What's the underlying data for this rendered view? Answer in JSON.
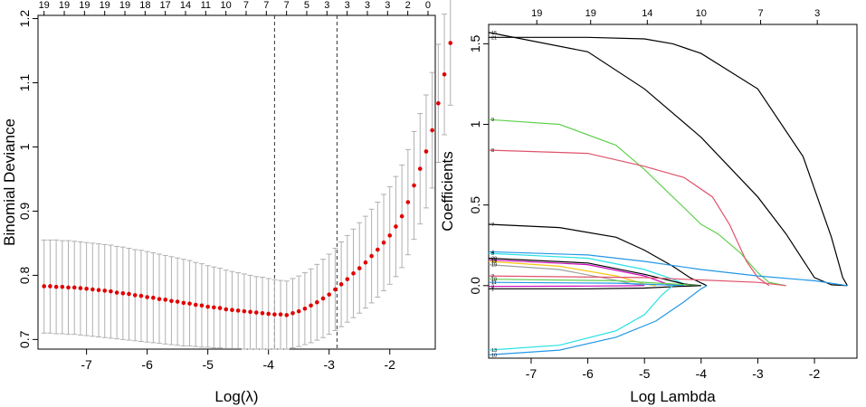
{
  "chart_data": [
    {
      "type": "scatter",
      "title": "",
      "xlabel": "Log(λ)",
      "ylabel": "Binomial Deviance",
      "xlim": [
        -7.8,
        -1.25
      ],
      "ylim": [
        0.685,
        1.205
      ],
      "xticks": [
        -7,
        -6,
        -5,
        -4,
        -3,
        -2
      ],
      "yticks": [
        0.7,
        0.8,
        0.9,
        1.0,
        1.1,
        1.2
      ],
      "top_axis_labels": [
        "19",
        "19",
        "19",
        "19",
        "19",
        "18",
        "17",
        "14",
        "11",
        "10",
        "7",
        "7",
        "7",
        "5",
        "3",
        "3",
        "3",
        "3",
        "2",
        "0"
      ],
      "vlines": [
        -3.9,
        -2.87
      ],
      "series": [
        {
          "name": "cv mean",
          "x_start": -7.7,
          "x_step": 0.1,
          "values": [
            0.783,
            0.783,
            0.782,
            0.782,
            0.781,
            0.781,
            0.78,
            0.779,
            0.778,
            0.777,
            0.776,
            0.775,
            0.773,
            0.772,
            0.771,
            0.769,
            0.768,
            0.766,
            0.765,
            0.763,
            0.762,
            0.76,
            0.759,
            0.757,
            0.756,
            0.754,
            0.753,
            0.751,
            0.75,
            0.749,
            0.747,
            0.746,
            0.745,
            0.744,
            0.743,
            0.742,
            0.741,
            0.74,
            0.739,
            0.739,
            0.738,
            0.741,
            0.744,
            0.748,
            0.753,
            0.758,
            0.764,
            0.77,
            0.778,
            0.786,
            0.794,
            0.803,
            0.811,
            0.82,
            0.83,
            0.84,
            0.851,
            0.862,
            0.876,
            0.892,
            0.914,
            0.94,
            0.966,
            0.993,
            1.026,
            1.068,
            1.113,
            1.162
          ],
          "lower": [
            0.71,
            0.71,
            0.709,
            0.709,
            0.708,
            0.708,
            0.707,
            0.706,
            0.705,
            0.704,
            0.703,
            0.702,
            0.701,
            0.7,
            0.699,
            0.698,
            0.697,
            0.696,
            0.695,
            0.694,
            0.693,
            0.692,
            0.691,
            0.69,
            0.69,
            0.689,
            0.688,
            0.688,
            0.687,
            0.687,
            0.686,
            0.686,
            0.686,
            0.685,
            0.685,
            0.685,
            0.685,
            0.685,
            0.685,
            0.685,
            0.685,
            0.687,
            0.689,
            0.692,
            0.695,
            0.699,
            0.703,
            0.708,
            0.714,
            0.72,
            0.727,
            0.734,
            0.741,
            0.749,
            0.757,
            0.766,
            0.776,
            0.786,
            0.798,
            0.812,
            0.832,
            0.856,
            0.88,
            0.905,
            0.936,
            0.976,
            1.019,
            1.065
          ],
          "upper": [
            0.855,
            0.855,
            0.855,
            0.854,
            0.854,
            0.853,
            0.852,
            0.851,
            0.85,
            0.849,
            0.848,
            0.847,
            0.845,
            0.844,
            0.842,
            0.84,
            0.839,
            0.837,
            0.835,
            0.833,
            0.831,
            0.829,
            0.827,
            0.825,
            0.823,
            0.82,
            0.818,
            0.815,
            0.813,
            0.811,
            0.808,
            0.806,
            0.804,
            0.802,
            0.8,
            0.798,
            0.797,
            0.795,
            0.793,
            0.792,
            0.791,
            0.795,
            0.799,
            0.804,
            0.81,
            0.817,
            0.825,
            0.833,
            0.842,
            0.852,
            0.862,
            0.872,
            0.882,
            0.892,
            0.903,
            0.914,
            0.926,
            0.938,
            0.954,
            0.972,
            0.996,
            1.024,
            1.052,
            1.081,
            1.116,
            1.16,
            1.207,
            1.259
          ]
        }
      ]
    },
    {
      "type": "line",
      "title": "",
      "xlabel": "Log Lambda",
      "ylabel": "Coefficients",
      "xlim": [
        -7.75,
        -1.25
      ],
      "ylim": [
        -0.45,
        1.62
      ],
      "xticks": [
        -7,
        -6,
        -5,
        -4,
        -3,
        -2
      ],
      "yticks": [
        0.0,
        0.5,
        1.0,
        1.5
      ],
      "top_axis_labels": [
        "19",
        "19",
        "14",
        "10",
        "7",
        "3"
      ],
      "top_axis_positions": [
        -6.9,
        -5.95,
        -4.95,
        -4.0,
        -2.95,
        -1.95
      ],
      "series": [
        {
          "name": "15",
          "color": "#000000",
          "x": [
            -7.75,
            -6.0,
            -5.0,
            -4.0,
            -3.0,
            -2.5,
            -2.0,
            -1.7,
            -1.42
          ],
          "values": [
            1.57,
            1.45,
            1.22,
            0.92,
            0.55,
            0.32,
            0.05,
            0.005,
            0.0
          ]
        },
        {
          "name": "21",
          "color": "#000000",
          "x": [
            -7.75,
            -6.0,
            -5.0,
            -4.5,
            -4.0,
            -3.0,
            -2.2,
            -1.7,
            -1.5,
            -1.42
          ],
          "values": [
            1.54,
            1.54,
            1.53,
            1.5,
            1.44,
            1.22,
            0.8,
            0.3,
            0.05,
            0.0
          ]
        },
        {
          "name": "9",
          "color": "#61d04f",
          "x": [
            -7.75,
            -6.5,
            -5.5,
            -5.0,
            -4.5,
            -4.0,
            -3.7,
            -3.3,
            -3.0,
            -2.8,
            -2.5
          ],
          "values": [
            1.03,
            1.0,
            0.87,
            0.72,
            0.55,
            0.38,
            0.32,
            0.2,
            0.08,
            0.02,
            0.0
          ]
        },
        {
          "name": "8",
          "color": "#df536b",
          "x": [
            -7.75,
            -6.0,
            -5.0,
            -4.3,
            -3.8,
            -3.5,
            -3.2,
            -3.0,
            -2.8
          ],
          "values": [
            0.84,
            0.82,
            0.74,
            0.67,
            0.55,
            0.38,
            0.15,
            0.05,
            0.0
          ]
        },
        {
          "name": "7",
          "color": "#000000",
          "x": [
            -7.75,
            -6.5,
            -5.5,
            -5.0,
            -4.5,
            -4.2,
            -3.9
          ],
          "values": [
            0.38,
            0.36,
            0.3,
            0.22,
            0.12,
            0.05,
            0.0
          ]
        },
        {
          "name": "4",
          "color": "#2297e6",
          "x": [
            -7.75,
            -6.0,
            -5.0,
            -4.0,
            -3.0,
            -2.0,
            -1.42
          ],
          "values": [
            0.21,
            0.19,
            0.15,
            0.1,
            0.06,
            0.03,
            0.0
          ]
        },
        {
          "name": "5",
          "color": "#28e2e5",
          "x": [
            -7.75,
            -6.0,
            -5.0,
            -4.5,
            -4.3,
            -4.1
          ],
          "values": [
            0.2,
            0.17,
            0.1,
            0.04,
            0.01,
            0.0
          ]
        },
        {
          "name": "20",
          "color": "#000000",
          "x": [
            -7.75,
            -6.0,
            -5.0,
            -4.3,
            -4.0
          ],
          "values": [
            0.17,
            0.14,
            0.07,
            0.01,
            0.0
          ]
        },
        {
          "name": "14",
          "color": "#cd0bbc",
          "x": [
            -7.75,
            -6.0,
            -5.0,
            -4.6,
            -4.4
          ],
          "values": [
            0.16,
            0.13,
            0.06,
            0.01,
            0.0
          ]
        },
        {
          "name": "12",
          "color": "#f5c710",
          "x": [
            -7.75,
            -6.5,
            -5.5,
            -5.0,
            -4.8
          ],
          "values": [
            0.15,
            0.12,
            0.06,
            0.01,
            0.0
          ]
        },
        {
          "name": "19",
          "color": "#9e9e9e",
          "x": [
            -7.75,
            -6.5,
            -5.6,
            -5.2,
            -5.0
          ],
          "values": [
            0.13,
            0.1,
            0.04,
            0.01,
            0.0
          ]
        },
        {
          "name": "2",
          "color": "#df536b",
          "x": [
            -7.75,
            -5.0,
            -3.0,
            -2.5
          ],
          "values": [
            0.06,
            0.05,
            0.02,
            0.0
          ]
        },
        {
          "name": "18",
          "color": "#61d04f",
          "x": [
            -7.75,
            -5.5,
            -4.5,
            -4.0
          ],
          "values": [
            0.04,
            0.03,
            0.01,
            0.0
          ]
        },
        {
          "name": "11",
          "color": "#2297e6",
          "x": [
            -7.75,
            -5.5,
            -4.7,
            -4.3
          ],
          "values": [
            0.02,
            0.015,
            0.005,
            0.0
          ]
        },
        {
          "name": "3",
          "color": "#cd0bbc",
          "x": [
            -7.75,
            -6.0,
            -5.3,
            -5.0
          ],
          "values": [
            -0.005,
            -0.003,
            -0.001,
            0.0
          ]
        },
        {
          "name": "1",
          "color": "#000000",
          "x": [
            -7.75,
            -6.0,
            -5.0,
            -4.4,
            -4.0
          ],
          "values": [
            -0.02,
            -0.02,
            -0.015,
            -0.005,
            0.0
          ]
        },
        {
          "name": "13",
          "color": "#28e2e5",
          "x": [
            -7.75,
            -6.5,
            -5.5,
            -5.0,
            -4.7,
            -4.5
          ],
          "values": [
            -0.4,
            -0.37,
            -0.28,
            -0.18,
            -0.06,
            0.0
          ]
        },
        {
          "name": "10",
          "color": "#2297e6",
          "x": [
            -7.75,
            -6.5,
            -5.5,
            -4.8,
            -4.3,
            -4.0,
            -3.9
          ],
          "values": [
            -0.43,
            -0.4,
            -0.32,
            -0.22,
            -0.1,
            -0.02,
            0.0
          ]
        }
      ],
      "line_labels": [
        "15",
        "21",
        "9",
        "8",
        "7",
        "4",
        "5",
        "20",
        "14",
        "12",
        "19",
        "2",
        "18",
        "11",
        "3",
        "1",
        "13",
        "10"
      ]
    }
  ]
}
